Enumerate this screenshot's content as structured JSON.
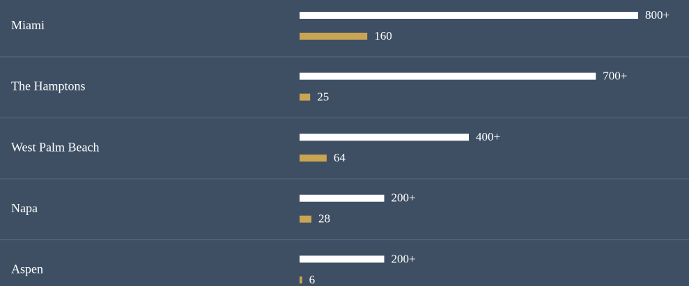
{
  "chart_data": {
    "type": "bar",
    "orientation": "horizontal",
    "categories": [
      "Miami",
      "The Hamptons",
      "West Palm Beach",
      "Napa",
      "Aspen"
    ],
    "series": [
      {
        "color": "#ffffff",
        "values": [
          800,
          700,
          400,
          200,
          200
        ],
        "value_labels": [
          "800+",
          "700+",
          "400+",
          "200+",
          "200+"
        ]
      },
      {
        "color": "#c9a553",
        "values": [
          160,
          25,
          64,
          28,
          6
        ]
      }
    ]
  }
}
